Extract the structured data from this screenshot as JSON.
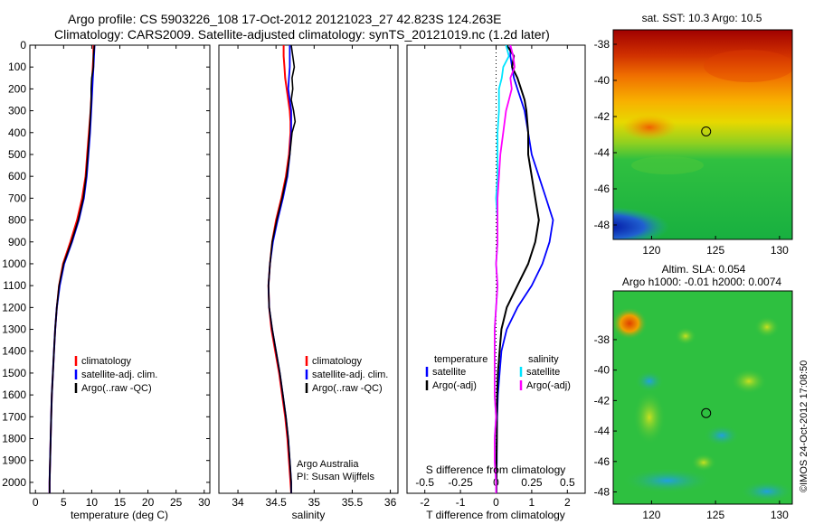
{
  "header": {
    "line1": "Argo profile: CS 5903226_108 17-Oct-2012 20121023_27 42.823S 124.263E",
    "line2": "Climatology: CARS2009. Satellite-adjusted climatology: synTS_20121019.nc (1.2d later)"
  },
  "colors": {
    "climatology": "#ff0000",
    "satellite": "#0000ff",
    "argo": "#000000",
    "sal_satellite": "#00e5ff",
    "sal_argo": "#ff00ff"
  },
  "depth_axis": {
    "ylim": [
      0,
      2050
    ],
    "ticks": [
      "0",
      "100",
      "200",
      "300",
      "400",
      "500",
      "600",
      "700",
      "800",
      "900",
      "1000",
      "1100",
      "1200",
      "1300",
      "1400",
      "1500",
      "1600",
      "1700",
      "1800",
      "1900",
      "2000"
    ]
  },
  "chart_data": [
    {
      "type": "line",
      "panel": "temperature",
      "xlabel": "temperature (deg C)",
      "xlim": [
        -1,
        31
      ],
      "xticks": [
        "0",
        "5",
        "10",
        "15",
        "20",
        "25",
        "30"
      ],
      "ylim": [
        0,
        2050
      ],
      "depth": [
        0,
        50,
        100,
        150,
        200,
        250,
        300,
        400,
        500,
        600,
        700,
        800,
        900,
        1000,
        1100,
        1200,
        1300,
        1400,
        1500,
        1600,
        1700,
        1800,
        1900,
        2000,
        2050
      ],
      "series": [
        {
          "name": "climatology",
          "values": [
            10.3,
            10.3,
            10.2,
            10.1,
            10.0,
            9.9,
            9.8,
            9.5,
            9.2,
            8.9,
            8.3,
            7.4,
            6.2,
            4.9,
            4.2,
            3.8,
            3.5,
            3.3,
            3.1,
            2.9,
            2.8,
            2.7,
            2.6,
            2.5,
            2.5
          ]
        },
        {
          "name": "satellite-adj. clim.",
          "values": [
            10.5,
            10.4,
            10.3,
            10.2,
            10.1,
            10.0,
            9.9,
            9.7,
            9.4,
            9.1,
            8.6,
            7.7,
            6.5,
            5.1,
            4.3,
            3.8,
            3.5,
            3.3,
            3.1,
            2.9,
            2.8,
            2.7,
            2.6,
            2.5,
            2.5
          ]
        },
        {
          "name": "Argo(..raw -QC)",
          "values": [
            10.5,
            10.3,
            10.3,
            10.0,
            9.9,
            9.9,
            9.8,
            9.6,
            9.3,
            9.0,
            8.5,
            7.6,
            6.4,
            5.0,
            4.2,
            3.8,
            3.5,
            3.3,
            3.1,
            2.9,
            2.8,
            2.7,
            2.6,
            2.5,
            2.5
          ]
        }
      ],
      "legend": [
        "climatology",
        "satellite-adj. clim.",
        "Argo(..raw -QC)"
      ]
    },
    {
      "type": "line",
      "panel": "salinity",
      "xlabel": "salinity",
      "xlim": [
        33.75,
        36.1
      ],
      "xticks": [
        "34",
        "34.5",
        "35",
        "35.5",
        "36"
      ],
      "ylim": [
        0,
        2050
      ],
      "depth": [
        0,
        50,
        100,
        150,
        200,
        250,
        300,
        350,
        400,
        500,
        600,
        700,
        800,
        900,
        1000,
        1100,
        1200,
        1300,
        1400,
        1500,
        1600,
        1700,
        1800,
        1900,
        2000,
        2050
      ],
      "series": [
        {
          "name": "climatology",
          "values": [
            34.6,
            34.6,
            34.61,
            34.62,
            34.64,
            34.66,
            34.68,
            34.69,
            34.69,
            34.67,
            34.63,
            34.57,
            34.5,
            34.45,
            34.42,
            34.4,
            34.41,
            34.44,
            34.49,
            34.54,
            34.58,
            34.62,
            34.65,
            34.67,
            34.69,
            34.7
          ]
        },
        {
          "name": "satellite-adj. clim.",
          "values": [
            34.68,
            34.68,
            34.68,
            34.67,
            34.66,
            34.68,
            34.7,
            34.7,
            34.7,
            34.68,
            34.65,
            34.59,
            34.52,
            34.46,
            34.42,
            34.4,
            34.41,
            34.45,
            34.5,
            34.55,
            34.59,
            34.63,
            34.66,
            34.68,
            34.7,
            34.7
          ]
        },
        {
          "name": "Argo(..raw -QC)",
          "values": [
            34.7,
            34.72,
            34.74,
            34.71,
            34.72,
            34.7,
            34.73,
            34.75,
            34.71,
            34.68,
            34.64,
            34.58,
            34.51,
            34.45,
            34.42,
            34.4,
            34.41,
            34.45,
            34.5,
            34.55,
            34.59,
            34.63,
            34.66,
            34.68,
            34.7,
            34.7
          ]
        }
      ],
      "legend": [
        "climatology",
        "satellite-adj. clim.",
        "Argo(..raw -QC)"
      ],
      "annotation": [
        "Argo Australia",
        "PI: Susan Wijffels"
      ]
    },
    {
      "type": "line",
      "panel": "difference",
      "xlabel": "T difference from climatology",
      "xlabel_top": "S difference from climatology",
      "xlim": [
        -2.5,
        2.5
      ],
      "xticks": [
        "-2",
        "-1",
        "0",
        "1",
        "2"
      ],
      "xticks_top": [
        "-0.5",
        "-0.25",
        "0",
        "0.25",
        "0.5"
      ],
      "ylim": [
        0,
        2050
      ],
      "depth": [
        0,
        50,
        100,
        150,
        200,
        250,
        300,
        400,
        500,
        600,
        700,
        800,
        900,
        1000,
        1100,
        1200,
        1300,
        1400,
        1500,
        1600,
        1700,
        1800,
        1900,
        2000,
        2050
      ],
      "series": [
        {
          "name": "temperature satellite",
          "values": [
            0.4,
            0.4,
            0.45,
            0.5,
            0.6,
            0.7,
            0.8,
            0.9,
            1.0,
            1.2,
            1.4,
            1.6,
            1.5,
            1.3,
            1.0,
            0.6,
            0.3,
            0.15,
            0.1,
            0.05,
            0.03,
            0.02,
            0.02,
            0.01,
            0.01
          ]
        },
        {
          "name": "temperature Argo(-adj)",
          "values": [
            0.3,
            0.5,
            0.45,
            0.6,
            0.7,
            0.8,
            0.85,
            0.9,
            0.9,
            1.0,
            1.1,
            1.2,
            1.1,
            0.9,
            0.6,
            0.3,
            0.15,
            0.1,
            0.05,
            0.03,
            0.02,
            0.02,
            0.01,
            0.01,
            0.01
          ]
        },
        {
          "name": "salinity satellite",
          "values": [
            0.07,
            0.09,
            0.05,
            0.04,
            0.02,
            0.02,
            0.02,
            0.01,
            0.01,
            0.01,
            0.0,
            0.01,
            0.01,
            0.0,
            0.01,
            0.0,
            -0.01,
            -0.01,
            -0.01,
            -0.01,
            0.0,
            -0.01,
            -0.01,
            0.0,
            0.0
          ]
        },
        {
          "name": "salinity Argo(-adj)",
          "values": [
            0.1,
            0.12,
            0.13,
            0.1,
            0.11,
            0.09,
            0.07,
            0.05,
            0.03,
            0.02,
            0.01,
            0.01,
            0.01,
            0.0,
            0.01,
            0.0,
            -0.01,
            -0.01,
            -0.01,
            -0.01,
            0.0,
            -0.01,
            -0.01,
            0.0,
            0.0
          ]
        }
      ],
      "legend_temperature": {
        "title": "temperature",
        "items": [
          "satellite",
          "Argo(-adj)"
        ]
      },
      "legend_salinity": {
        "title": "salinity",
        "items": [
          "satellite",
          "Argo(-adj)"
        ]
      }
    },
    {
      "type": "heatmap",
      "panel": "sst_map",
      "title": "sat. SST: 10.3 Argo: 10.5",
      "xlim": [
        117,
        131
      ],
      "ylim": [
        -48.8,
        -37.2
      ],
      "xticks": [
        "120",
        "125",
        "130"
      ],
      "yticks": [
        "-38",
        "-40",
        "-42",
        "-44",
        "-46",
        "-48"
      ],
      "marker": {
        "lon": 124.263,
        "lat": -42.823
      }
    },
    {
      "type": "heatmap",
      "panel": "sla_map",
      "title": "Altim. SLA: 0.054",
      "subtitle": "Argo h1000: -0.01 h2000: 0.0074",
      "xlim": [
        117,
        131
      ],
      "ylim": [
        -48.8,
        -34.8
      ],
      "xticks": [
        "120",
        "125",
        "130"
      ],
      "yticks": [
        "-38",
        "-40",
        "-42",
        "-44",
        "-46",
        "-48"
      ],
      "marker": {
        "lon": 124.263,
        "lat": -42.823
      }
    }
  ],
  "footer": {
    "stamp": "©IMOS 24-Oct-2012 17:08:50"
  }
}
